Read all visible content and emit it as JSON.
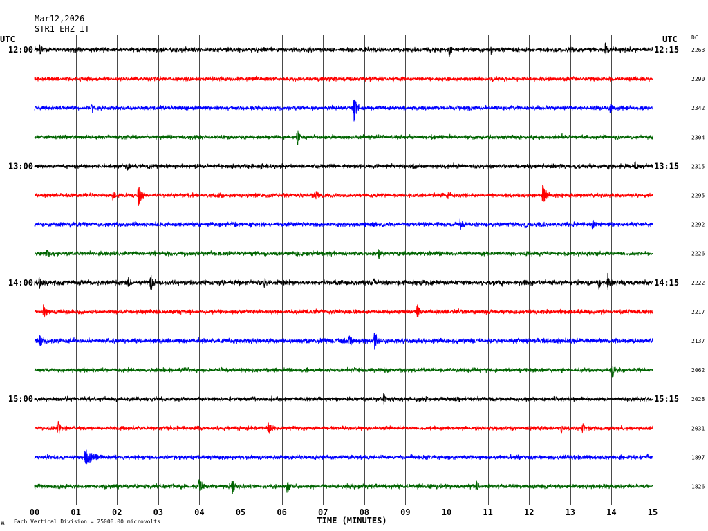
{
  "header": {
    "date": "Mar12,2026",
    "station": "STR1 EHZ IT"
  },
  "axis": {
    "left_tz": "UTC",
    "right_tz": "UTC",
    "dc_heading": "DC"
  },
  "footer": {
    "scale_note": "Each Vertical Division = 25000.00 microvolts"
  },
  "chart_data": {
    "type": "line",
    "xlabel": "TIME (MINUTES)",
    "xlim": [
      0,
      15
    ],
    "x_ticks": [
      "00",
      "01",
      "02",
      "03",
      "04",
      "05",
      "06",
      "07",
      "08",
      "09",
      "10",
      "11",
      "12",
      "13",
      "14",
      "15"
    ],
    "vertical_division_uV": 25000,
    "colors": [
      "#000000",
      "#ff0000",
      "#0000ff",
      "#006400"
    ],
    "traces": [
      {
        "color": "#000000",
        "left_label": "12:00",
        "right_label": "12:15",
        "dc": "2263",
        "noise_rms_uV": 900,
        "events": [
          {
            "t_min": 0.13,
            "amp_uV": 6000,
            "dur_s": 10
          },
          {
            "t_min": 10.07,
            "amp_uV": 5300
          },
          {
            "t_min": 11.08,
            "amp_uV": 3000
          },
          {
            "t_min": 12.95,
            "amp_uV": 3600
          },
          {
            "t_min": 13.85,
            "amp_uV": 5300
          }
        ]
      },
      {
        "color": "#ff0000",
        "dc": "2290",
        "noise_rms_uV": 800,
        "events": [
          {
            "t_min": 8.7,
            "amp_uV": 2400
          }
        ]
      },
      {
        "color": "#0000ff",
        "dc": "2342",
        "noise_rms_uV": 800,
        "events": [
          {
            "t_min": 1.39,
            "amp_uV": 3600
          },
          {
            "t_min": 7.75,
            "amp_uV": 12000,
            "dur_s": 10
          },
          {
            "t_min": 13.97,
            "amp_uV": 6000
          }
        ]
      },
      {
        "color": "#006400",
        "dc": "2304",
        "noise_rms_uV": 800,
        "events": [
          {
            "t_min": 6.37,
            "amp_uV": 8300,
            "dur_s": 10
          },
          {
            "t_min": 12.8,
            "amp_uV": 2400
          }
        ]
      },
      {
        "color": "#000000",
        "left_label": "13:00",
        "right_label": "13:15",
        "dc": "2315",
        "noise_rms_uV": 850,
        "events": [
          {
            "t_min": 2.25,
            "amp_uV": 4800
          },
          {
            "t_min": 5.5,
            "amp_uV": 3000
          },
          {
            "t_min": 12.75,
            "amp_uV": 3000
          },
          {
            "t_min": 14.56,
            "amp_uV": 4800
          }
        ]
      },
      {
        "color": "#ff0000",
        "dc": "2295",
        "noise_rms_uV": 800,
        "events": [
          {
            "t_min": 1.9,
            "amp_uV": 3600
          },
          {
            "t_min": 2.52,
            "amp_uV": 10700,
            "dur_s": 12
          },
          {
            "t_min": 6.83,
            "amp_uV": 4800
          },
          {
            "t_min": 10.03,
            "amp_uV": 3600
          },
          {
            "t_min": 12.33,
            "amp_uV": 10700,
            "dur_s": 12
          }
        ]
      },
      {
        "color": "#0000ff",
        "dc": "2292",
        "noise_rms_uV": 850,
        "events": [
          {
            "t_min": 10.32,
            "amp_uV": 4200,
            "dur_s": 14
          },
          {
            "t_min": 11.9,
            "amp_uV": 3000
          },
          {
            "t_min": 13.54,
            "amp_uV": 6000
          }
        ]
      },
      {
        "color": "#006400",
        "dc": "2226",
        "noise_rms_uV": 800,
        "events": [
          {
            "t_min": 0.3,
            "amp_uV": 4200
          },
          {
            "t_min": 6.37,
            "amp_uV": 3000
          },
          {
            "t_min": 8.35,
            "amp_uV": 6000
          }
        ]
      },
      {
        "color": "#000000",
        "left_label": "14:00",
        "right_label": "14:15",
        "dc": "2222",
        "noise_rms_uV": 950,
        "events": [
          {
            "t_min": 0.12,
            "amp_uV": 5300
          },
          {
            "t_min": 2.28,
            "amp_uV": 5300
          },
          {
            "t_min": 2.82,
            "amp_uV": 10100,
            "dur_s": 6
          },
          {
            "t_min": 5.57,
            "amp_uV": 3600
          },
          {
            "t_min": 8.22,
            "amp_uV": 3600
          },
          {
            "t_min": 13.69,
            "amp_uV": 6000
          },
          {
            "t_min": 13.91,
            "amp_uV": 7700
          }
        ]
      },
      {
        "color": "#ff0000",
        "dc": "2217",
        "noise_rms_uV": 800,
        "events": [
          {
            "t_min": 0.22,
            "amp_uV": 7700,
            "dur_s": 10
          },
          {
            "t_min": 9.28,
            "amp_uV": 7700
          }
        ]
      },
      {
        "color": "#0000ff",
        "dc": "2137",
        "noise_rms_uV": 950,
        "events": [
          {
            "t_min": 0.13,
            "amp_uV": 6000
          },
          {
            "t_min": 7.63,
            "amp_uV": 4800,
            "dur_s": 12
          },
          {
            "t_min": 8.25,
            "amp_uV": 9500,
            "dur_s": 10
          }
        ]
      },
      {
        "color": "#006400",
        "dc": "2062",
        "noise_rms_uV": 800,
        "events": [
          {
            "t_min": 14.02,
            "amp_uV": 7700
          }
        ]
      },
      {
        "color": "#000000",
        "left_label": "15:00",
        "right_label": "15:15",
        "dc": "2028",
        "noise_rms_uV": 850,
        "events": [
          {
            "t_min": 8.47,
            "amp_uV": 5300
          }
        ]
      },
      {
        "color": "#ff0000",
        "dc": "2031",
        "noise_rms_uV": 800,
        "events": [
          {
            "t_min": 0.57,
            "amp_uV": 7100,
            "dur_s": 10
          },
          {
            "t_min": 5.67,
            "amp_uV": 6500,
            "dur_s": 12
          },
          {
            "t_min": 12.78,
            "amp_uV": 3600
          },
          {
            "t_min": 13.3,
            "amp_uV": 4800
          }
        ]
      },
      {
        "color": "#0000ff",
        "dc": "1897",
        "noise_rms_uV": 850,
        "events": [
          {
            "t_min": 1.22,
            "amp_uV": 6500,
            "dur_s": 36
          },
          {
            "t_min": 14.85,
            "amp_uV": 3000
          }
        ]
      },
      {
        "color": "#006400",
        "dc": "1826",
        "noise_rms_uV": 850,
        "events": [
          {
            "t_min": 3.99,
            "amp_uV": 7700,
            "dur_s": 12
          },
          {
            "t_min": 4.8,
            "amp_uV": 8300
          },
          {
            "t_min": 6.13,
            "amp_uV": 6000
          },
          {
            "t_min": 9.6,
            "amp_uV": 3000
          },
          {
            "t_min": 10.72,
            "amp_uV": 6000
          }
        ]
      }
    ]
  }
}
